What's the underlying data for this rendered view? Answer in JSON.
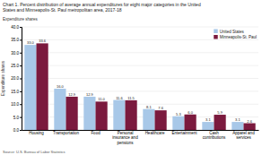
{
  "chart_data": {
    "type": "bar",
    "title": "Chart 1. Percent distribution of average annual expenditures for eight major categories in the United\nStates and Minneapolis-St. Paul metropolitan area, 2017-18",
    "ylabel": "Expenditure shares",
    "source": "Source: U.S. Bureau of Labor Statistics",
    "categories": [
      "Housing",
      "Transportation",
      "Food",
      "Personal\ninsurance and\npensions",
      "Healthcare",
      "Entertainment",
      "Cash\ncontributions",
      "Apparel and\nservices"
    ],
    "series": [
      {
        "name": "United States",
        "color": "#a8c8e8",
        "values": [
          33.0,
          16.0,
          12.9,
          11.6,
          8.1,
          5.3,
          3.1,
          3.1
        ],
        "value_labels": [
          "33.0",
          "16.0",
          "12.9",
          "11.6",
          "8.1",
          "5.3",
          "3.1",
          "3.1"
        ]
      },
      {
        "name": "Minneapolis-St. Paul",
        "color": "#7b1a3e",
        "values": [
          33.6,
          12.9,
          11.0,
          11.5,
          7.6,
          6.0,
          5.9,
          2.6
        ],
        "value_labels": [
          "33.6",
          "12.9",
          "11.0",
          "11.5",
          "7.6",
          "6.0",
          "5.9",
          "2.6"
        ]
      }
    ],
    "ylim": [
      0,
      40.0
    ],
    "yticks": [
      {
        "value": 0.0,
        "label": "0.0"
      },
      {
        "value": 5.0,
        "label": "5.0"
      },
      {
        "value": 10.0,
        "label": "10.0"
      },
      {
        "value": 15.0,
        "label": "15.0"
      },
      {
        "value": 20.0,
        "label": "20.0"
      },
      {
        "value": 25.0,
        "label": "25.0"
      },
      {
        "value": 30.0,
        "label": "30.0"
      },
      {
        "value": 35.0,
        "label": "35.0"
      },
      {
        "value": 40.0,
        "label": "40.0"
      }
    ],
    "grid": true,
    "legend": "upper right",
    "data_labels": true
  }
}
